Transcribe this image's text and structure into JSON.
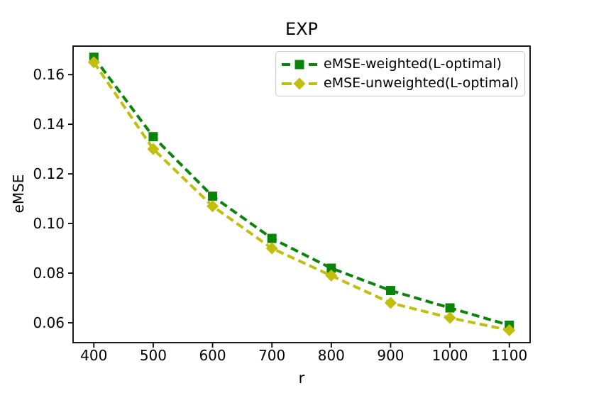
{
  "figure": {
    "title": "EXP"
  },
  "chart_data": {
    "type": "line",
    "title": "EXP",
    "xlabel": "r",
    "ylabel": "eMSE",
    "x": [
      400,
      500,
      600,
      700,
      800,
      900,
      1000,
      1100
    ],
    "series": [
      {
        "name": "eMSE-weighted(L-optimal)",
        "color": "#0a850a",
        "marker": "square",
        "linestyle": "dashed",
        "values": [
          0.167,
          0.135,
          0.111,
          0.094,
          0.082,
          0.073,
          0.066,
          0.059
        ]
      },
      {
        "name": "eMSE-unweighted(L-optimal)",
        "color": "#c2be0c",
        "marker": "diamond",
        "linestyle": "dashed",
        "values": [
          0.165,
          0.13,
          0.107,
          0.09,
          0.079,
          0.068,
          0.062,
          0.057
        ]
      }
    ],
    "xticks": [
      400,
      500,
      600,
      700,
      800,
      900,
      1000,
      1100
    ],
    "yticks": [
      0.06,
      0.08,
      0.1,
      0.12,
      0.14,
      0.16
    ],
    "xlim": [
      365,
      1135
    ],
    "ylim": [
      0.052,
      0.1715
    ],
    "grid": false,
    "legend_position": "upper right"
  }
}
